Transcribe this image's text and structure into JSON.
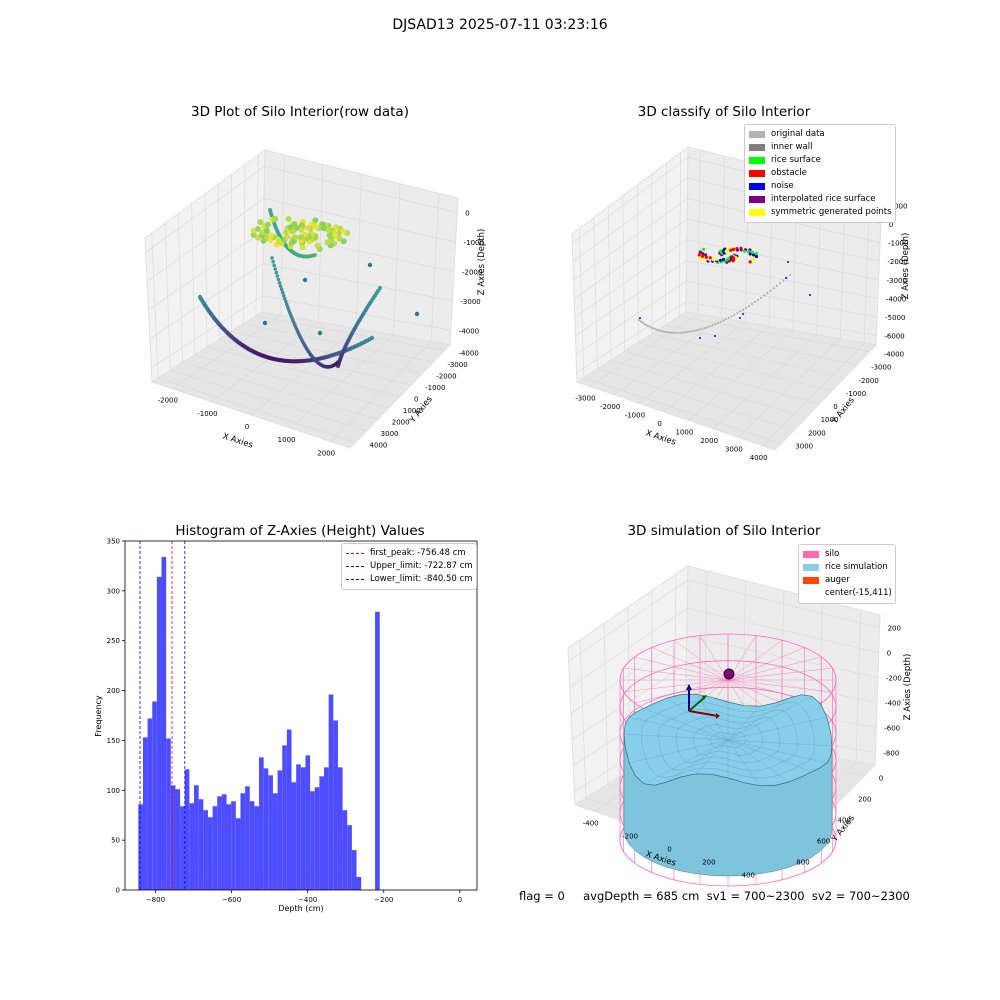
{
  "figure": {
    "suptitle": "DJSAD13 2025-07-11 03:23:16",
    "status_line": "flag = 0     avgDepth = 685 cm  sv1 = 700~2300  sv2 = 700~2300"
  },
  "panels": {
    "raw": {
      "title": "3D Plot of Silo Interior(row data)",
      "xlabel": "X Axies",
      "ylabel": "Y Axies",
      "zlabel": "Z Axies (Depth)",
      "xticks": [
        "-2000",
        "-1000",
        "0",
        "1000",
        "2000"
      ],
      "yticks": [
        "-4000",
        "-3000",
        "-2000",
        "-1000",
        "0",
        "1000",
        "2000",
        "3000",
        "4000"
      ],
      "zticks": [
        "0",
        "-1000",
        "-2000",
        "-3000",
        "-4000"
      ]
    },
    "classify": {
      "title": "3D classify of Silo Interior",
      "xlabel": "X Axies",
      "ylabel": "Y Axies",
      "zlabel": "Z Axies (Depth)",
      "xticks": [
        "-3000",
        "-2000",
        "-1000",
        "0",
        "1000",
        "2000",
        "3000",
        "4000"
      ],
      "yticks": [
        "-4000",
        "-3000",
        "-2000",
        "-1000",
        "0",
        "1000",
        "2000",
        "3000"
      ],
      "zticks": [
        "1000",
        "0",
        "-1000",
        "-2000",
        "-3000",
        "-4000",
        "-5000",
        "-6000"
      ],
      "legend": [
        {
          "label": "original data",
          "color": "#b3b3b3"
        },
        {
          "label": "inner wall",
          "color": "#808080"
        },
        {
          "label": "rice surface",
          "color": "#00ff00"
        },
        {
          "label": "obstacle",
          "color": "#ff0000"
        },
        {
          "label": "noise",
          "color": "#0000ff"
        },
        {
          "label": "interpolated rice surface",
          "color": "#800080"
        },
        {
          "label": "symmetric generated points",
          "color": "#ffff00"
        }
      ]
    },
    "simulation": {
      "title": "3D simulation of Silo Interior",
      "xlabel": "X Axies",
      "ylabel": "Y Axies",
      "zlabel": "Z Axies (Depth)",
      "xticks": [
        "-400",
        "-200",
        "0",
        "200",
        "400"
      ],
      "yticks": [
        "0",
        "200",
        "400",
        "600",
        "800"
      ],
      "zticks": [
        "200",
        "0",
        "-200",
        "-400",
        "-600",
        "-800"
      ],
      "legend": [
        {
          "label": "silo",
          "color": "#ff69b4"
        },
        {
          "label": "rice simulation",
          "color": "#87ceeb"
        },
        {
          "label": "auger",
          "color": "#ff4500"
        },
        {
          "label": "center(-15,411)",
          "color": ""
        }
      ]
    }
  },
  "chart_data": [
    {
      "type": "scatter",
      "title": "3D Plot of Silo Interior(row data)",
      "xlabel": "X Axies",
      "ylabel": "Y Axies",
      "zlabel": "Z Axies (Depth)",
      "xlim": [
        -2300,
        2300
      ],
      "ylim": [
        -4200,
        4200
      ],
      "zlim": [
        -4500,
        0
      ]
    },
    {
      "type": "scatter",
      "title": "3D classify of Silo Interior",
      "xlabel": "X Axies",
      "ylabel": "Y Axies",
      "zlabel": "Z Axies (Depth)",
      "xlim": [
        -3500,
        4000
      ],
      "ylim": [
        -4000,
        3500
      ],
      "zlim": [
        -6000,
        1000
      ]
    },
    {
      "type": "bar",
      "title": "Histogram of Z-Axies (Height) Values",
      "xlabel": "Depth (cm)",
      "ylabel": "Frequency",
      "xlim": [
        -880,
        45
      ],
      "ylim": [
        0,
        350
      ],
      "xticks": [
        -800,
        -600,
        -400,
        -200,
        0
      ],
      "yticks": [
        0,
        50,
        100,
        150,
        200,
        250,
        300,
        350
      ],
      "bin_start": -845,
      "bin_width": 12.2,
      "values": [
        86,
        153,
        172,
        189,
        314,
        334,
        152,
        105,
        101,
        84,
        121,
        87,
        105,
        91,
        80,
        73,
        84,
        94,
        96,
        86,
        89,
        72,
        97,
        104,
        89,
        84,
        133,
        122,
        115,
        97,
        120,
        145,
        161,
        108,
        126,
        123,
        135,
        99,
        103,
        114,
        123,
        196,
        170,
        123,
        80,
        65,
        40,
        13,
        0,
        0,
        0,
        279
      ],
      "lines": [
        {
          "name": "first_peak: -756.48 cm",
          "x": -756.48,
          "color": "#ff0000"
        },
        {
          "name": "Upper_limit: -722.87 cm",
          "x": -722.87,
          "color": "#0000ff"
        },
        {
          "name": "Lower_limit: -840.50 cm",
          "x": -840.5,
          "color": "#0000ff"
        }
      ],
      "bar_color": "#4d4dff"
    },
    {
      "type": "area",
      "title": "3D simulation of Silo Interior",
      "xlabel": "X Axies",
      "ylabel": "Y Axies",
      "zlabel": "Z Axies (Depth)",
      "xlim": [
        -500,
        500
      ],
      "ylim": [
        -100,
        900
      ],
      "zlim": [
        -900,
        300
      ]
    }
  ]
}
